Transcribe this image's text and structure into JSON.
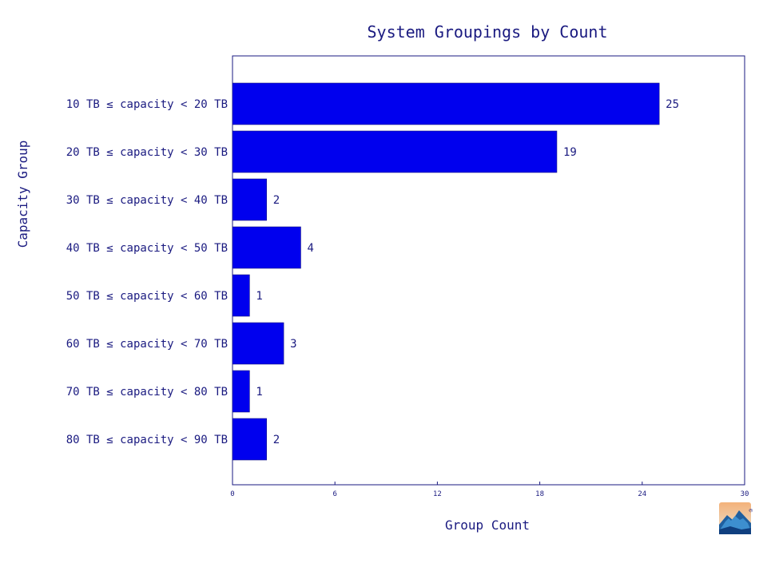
{
  "chart_data": {
    "type": "bar",
    "orientation": "horizontal",
    "title": "System Groupings by Count",
    "xlabel": "Group Count",
    "ylabel": "Capacity Group",
    "xlim": [
      0,
      30
    ],
    "xticks": [
      0,
      6,
      12,
      18,
      24,
      30
    ],
    "grid": false,
    "categories": [
      "10 TB ≤ capacity < 20 TB",
      "20 TB ≤ capacity < 30 TB",
      "30 TB ≤ capacity < 40 TB",
      "40 TB ≤ capacity < 50 TB",
      "50 TB ≤ capacity < 60 TB",
      "60 TB ≤ capacity < 70 TB",
      "70 TB ≤ capacity < 80 TB",
      "80 TB ≤ capacity < 90 TB"
    ],
    "values": [
      25,
      19,
      2,
      4,
      1,
      3,
      1,
      2
    ],
    "bar_color": "#0000ee",
    "text_color": "#1a1a80"
  },
  "logo": {
    "icon": "mountain-logo-icon"
  }
}
